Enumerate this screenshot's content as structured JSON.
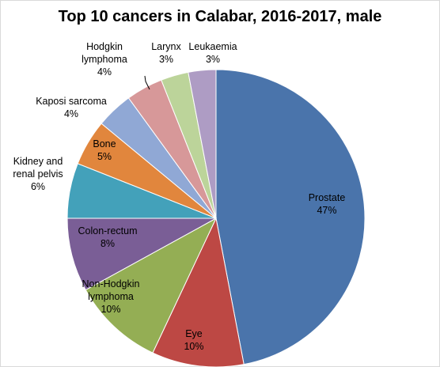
{
  "chart_data": {
    "type": "pie",
    "title": "Top 10 cancers in Calabar, 2016-2017,  male",
    "slices": [
      {
        "label": [
          "Prostate"
        ],
        "value_label": "47%",
        "value": 47,
        "color": "#4a74ab"
      },
      {
        "label": [
          "Eye"
        ],
        "value_label": "10%",
        "value": 10,
        "color": "#bd4844"
      },
      {
        "label": [
          "Non-Hodgkin",
          "lymphoma"
        ],
        "value_label": "10%",
        "value": 10,
        "color": "#94ae54"
      },
      {
        "label": [
          "Colon-rectum"
        ],
        "value_label": "8%",
        "value": 8,
        "color": "#7a5e96"
      },
      {
        "label": [
          "Kidney and",
          "renal pelvis"
        ],
        "value_label": "6%",
        "value": 6,
        "color": "#43a1ba"
      },
      {
        "label": [
          "Bone"
        ],
        "value_label": "5%",
        "value": 5,
        "color": "#e1863d"
      },
      {
        "label": [
          "Kaposi sarcoma"
        ],
        "value_label": "4%",
        "value": 4,
        "color": "#90a8d5"
      },
      {
        "label": [
          "Hodgkin",
          "lymphoma"
        ],
        "value_label": "4%",
        "value": 4,
        "color": "#d79899"
      },
      {
        "label": [
          "Larynx"
        ],
        "value_label": "3%",
        "value": 3,
        "color": "#bcd49a"
      },
      {
        "label": [
          "Leukaemia"
        ],
        "value_label": "3%",
        "value": 3,
        "color": "#ae9cc4"
      }
    ]
  }
}
